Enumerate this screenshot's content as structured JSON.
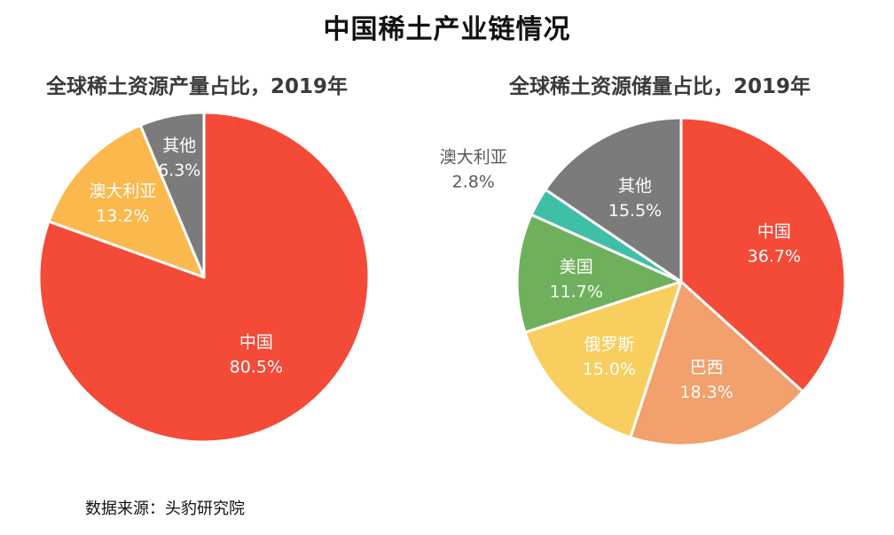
{
  "main_title": "中国稀土产业链情况",
  "source_note": "数据来源：头豹研究院",
  "chart_data": [
    {
      "type": "pie",
      "title": "全球稀土资源产量占比，2019年",
      "unit": "%",
      "slices": [
        {
          "label": "中国",
          "value": 80.5,
          "display": "80.5%",
          "color": "#f44a38",
          "text_color": "#ffffff"
        },
        {
          "label": "澳大利亚",
          "value": 13.2,
          "display": "13.2%",
          "color": "#fbb84c",
          "text_color": "#ffffff"
        },
        {
          "label": "其他",
          "value": 6.3,
          "display": "6.3%",
          "color": "#7b7b7b",
          "text_color": "#ffffff"
        }
      ]
    },
    {
      "type": "pie",
      "title": "全球稀土资源储量占比，2019年",
      "unit": "%",
      "slices": [
        {
          "label": "中国",
          "value": 36.7,
          "display": "36.7%",
          "color": "#f44a38",
          "text_color": "#ffffff"
        },
        {
          "label": "巴西",
          "value": 18.3,
          "display": "18.3%",
          "color": "#f2a06c",
          "text_color": "#ffffff"
        },
        {
          "label": "俄罗斯",
          "value": 15.0,
          "display": "15.0%",
          "color": "#f8cf5e",
          "text_color": "#ffffff"
        },
        {
          "label": "美国",
          "value": 11.7,
          "display": "11.7%",
          "color": "#6fb05c",
          "text_color": "#ffffff"
        },
        {
          "label": "澳大利亚",
          "value": 2.8,
          "display": "2.8%",
          "color": "#3fbfa6",
          "text_color": "#5a5a5a"
        },
        {
          "label": "其他",
          "value": 15.5,
          "display": "15.5%",
          "color": "#7b7b7b",
          "text_color": "#ffffff"
        }
      ]
    }
  ]
}
